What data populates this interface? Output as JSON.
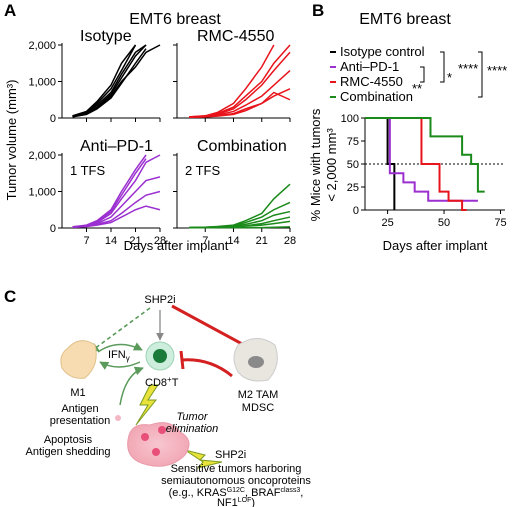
{
  "panel_labels": [
    "A",
    "B",
    "C"
  ],
  "chart_data": [
    {
      "type": "small-multiples-line",
      "title": "EMT6 breast",
      "y_label": "Tumor volume (mm³)",
      "x_label": "Days after implant",
      "x": [
        3,
        7,
        10,
        14,
        17,
        21,
        24,
        28
      ],
      "xlim": [
        0,
        28
      ],
      "xticks": [
        7,
        14,
        21,
        28
      ],
      "ylim": [
        0,
        2000
      ],
      "yticks": [
        0,
        {
          "value": 1000,
          "label": "1,000"
        },
        {
          "value": 2000,
          "label": "2,000"
        }
      ],
      "panels": [
        {
          "title": "Isotype",
          "color": "#000000",
          "series": [
            {
              "values": [
                50,
                150,
                400,
                800,
                1300,
                2000,
                null,
                null
              ]
            },
            {
              "values": [
                40,
                120,
                300,
                650,
                1100,
                1700,
                2000,
                null
              ]
            },
            {
              "values": [
                60,
                180,
                450,
                900,
                1500,
                2000,
                null,
                null
              ]
            },
            {
              "values": [
                30,
                100,
                250,
                550,
                950,
                1500,
                1900,
                null
              ]
            },
            {
              "values": [
                50,
                140,
                350,
                700,
                1200,
                1800,
                2000,
                null
              ]
            },
            {
              "values": [
                40,
                110,
                280,
                600,
                1000,
                1400,
                1800,
                2000
              ]
            }
          ]
        },
        {
          "title": "RMC-4550",
          "color": "#e8141b",
          "series": [
            {
              "values": [
                30,
                60,
                150,
                400,
                800,
                1400,
                2000,
                null
              ]
            },
            {
              "values": [
                30,
                50,
                120,
                300,
                600,
                1000,
                1500,
                2000
              ]
            },
            {
              "values": [
                20,
                40,
                100,
                250,
                500,
                900,
                1300,
                1800
              ]
            },
            {
              "values": [
                20,
                40,
                80,
                180,
                350,
                600,
                900,
                1300
              ]
            },
            {
              "values": [
                20,
                30,
                60,
                120,
                250,
                400,
                600,
                800
              ]
            },
            {
              "values": [
                20,
                30,
                50,
                100,
                200,
                400,
                700,
                500
              ]
            }
          ]
        },
        {
          "title": "Anti–PD-1",
          "annotation": "1 TFS",
          "color": "#9b2fd0",
          "series": [
            {
              "values": [
                30,
                80,
                200,
                500,
                1000,
                1600,
                2000,
                null
              ]
            },
            {
              "values": [
                30,
                70,
                180,
                450,
                900,
                1500,
                1900,
                null
              ]
            },
            {
              "values": [
                30,
                60,
                150,
                400,
                800,
                1300,
                1800,
                2000
              ]
            },
            {
              "values": [
                20,
                50,
                120,
                300,
                600,
                1000,
                1300,
                1400
              ]
            },
            {
              "values": [
                20,
                40,
                100,
                200,
                400,
                700,
                900,
                1000
              ]
            },
            {
              "values": [
                20,
                40,
                80,
                150,
                300,
                500,
                600,
                500
              ]
            }
          ]
        },
        {
          "title": "Combination",
          "annotation": "2 TFS",
          "color": "#1a8a1a",
          "series": [
            {
              "values": [
                10,
                20,
                40,
                80,
                200,
                400,
                800,
                1200
              ]
            },
            {
              "values": [
                10,
                20,
                30,
                60,
                150,
                300,
                500,
                700
              ]
            },
            {
              "values": [
                10,
                20,
                30,
                50,
                100,
                200,
                350,
                450
              ]
            },
            {
              "values": [
                10,
                15,
                20,
                30,
                60,
                120,
                200,
                300
              ]
            },
            {
              "values": [
                10,
                15,
                20,
                25,
                50,
                80,
                120,
                180
              ]
            },
            {
              "values": [
                10,
                10,
                10,
                10,
                10,
                10,
                20,
                30
              ]
            }
          ]
        }
      ]
    },
    {
      "type": "survival",
      "title": "EMT6 breast",
      "y_label": [
        "% Mice with tumors",
        "< 2,000 mm³"
      ],
      "x_label": "Days after implant",
      "xlim": [
        15,
        77
      ],
      "xticks": [
        25,
        50,
        75
      ],
      "ylim": [
        0,
        100
      ],
      "yticks": [
        0,
        25,
        50,
        75,
        100
      ],
      "reference_line": 50,
      "series": [
        {
          "name": "Isotype control",
          "color": "#000000",
          "x": [
            15,
            25,
            25,
            28,
            28
          ],
          "values": [
            100,
            100,
            50,
            50,
            0
          ]
        },
        {
          "name": "Anti–PD-1",
          "color": "#9b2fd0",
          "x": [
            15,
            26,
            26,
            32,
            32,
            37,
            37,
            43,
            43,
            65
          ],
          "values": [
            100,
            100,
            40,
            40,
            30,
            30,
            20,
            20,
            10,
            10
          ]
        },
        {
          "name": "RMC-4550",
          "color": "#e8141b",
          "x": [
            15,
            40,
            40,
            48,
            48,
            52,
            52,
            58,
            58,
            60
          ],
          "values": [
            100,
            100,
            50,
            50,
            20,
            20,
            10,
            10,
            0,
            0
          ]
        },
        {
          "name": "Combination",
          "color": "#1a8a1a",
          "x": [
            15,
            44,
            44,
            58,
            58,
            62,
            62,
            65,
            65,
            68
          ],
          "values": [
            100,
            100,
            80,
            80,
            60,
            60,
            50,
            50,
            20,
            20
          ]
        }
      ],
      "significance": [
        "****",
        "*",
        "**",
        "****"
      ]
    }
  ],
  "diagram": {
    "drug_top": "SHP2i",
    "ifn": "IFN",
    "ifn_sub": "γ",
    "cd8": "CD8",
    "cd8_sup": "+",
    "cd8_tail": "T",
    "m1": "M1",
    "m2": [
      "M2 TAM",
      "MDSC"
    ],
    "antigen": [
      "Antigen",
      "presentation"
    ],
    "apoptosis": [
      "Apoptosis",
      "Antigen shedding"
    ],
    "elimination": [
      "Tumor",
      "elimination"
    ],
    "drug_tumor": "SHP2i",
    "tumors": [
      "Sensitive tumors harboring",
      "semiautonomous oncoproteins"
    ],
    "examples": [
      "(e.g., KRAS",
      "G12C",
      ", BRAF",
      "class3",
      ",",
      "NF1",
      "LOF",
      ")"
    ]
  }
}
